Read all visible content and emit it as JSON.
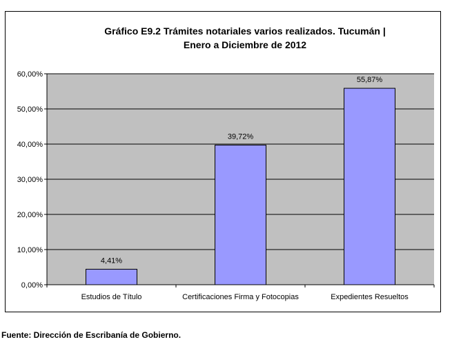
{
  "chart_data": {
    "type": "bar",
    "title_lines": [
      "Gráfico E9.2 Trámites notariales varios realizados. Tucumán |",
      "Enero a Diciembre de 2012"
    ],
    "categories": [
      "Estudios de Título",
      "Certificaciones Firma y Fotocopias",
      "Expedientes Resueltos"
    ],
    "values": [
      4.41,
      39.72,
      55.87
    ],
    "data_labels": [
      "4,41%",
      "39,72%",
      "55,87%"
    ],
    "ylim": [
      0,
      60
    ],
    "yticks": [
      0,
      10,
      20,
      30,
      40,
      50,
      60
    ],
    "ytick_labels": [
      "0,00%",
      "10,00%",
      "20,00%",
      "30,00%",
      "40,00%",
      "50,00%",
      "60,00%"
    ],
    "grid": true,
    "colors": {
      "plot_background": "#c0c0c0",
      "bar_fill": "#9999ff",
      "bar_stroke": "#000000",
      "gridline": "#000000"
    }
  },
  "footer": {
    "source": "Fuente: Dirección de Escribanía de Gobierno."
  }
}
